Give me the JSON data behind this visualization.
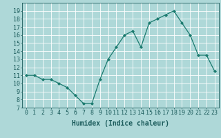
{
  "x": [
    0,
    1,
    2,
    3,
    4,
    5,
    6,
    7,
    8,
    9,
    10,
    11,
    12,
    13,
    14,
    15,
    16,
    17,
    18,
    19,
    20,
    21,
    22,
    23
  ],
  "y": [
    11,
    11,
    10.5,
    10.5,
    10,
    9.5,
    8.5,
    7.5,
    7.5,
    10.5,
    13,
    14.5,
    16,
    16.5,
    14.5,
    17.5,
    18,
    18.5,
    19,
    17.5,
    16,
    13.5,
    13.5,
    11.5
  ],
  "xlabel": "Humidex (Indice chaleur)",
  "ylim": [
    7,
    20
  ],
  "xlim": [
    -0.5,
    23.5
  ],
  "yticks": [
    7,
    8,
    9,
    10,
    11,
    12,
    13,
    14,
    15,
    16,
    17,
    18,
    19
  ],
  "xticks": [
    0,
    1,
    2,
    3,
    4,
    5,
    6,
    7,
    8,
    9,
    10,
    11,
    12,
    13,
    14,
    15,
    16,
    17,
    18,
    19,
    20,
    21,
    22,
    23
  ],
  "line_color": "#1a7a6e",
  "marker": "D",
  "marker_size": 2,
  "bg_color": "#aed8d8",
  "grid_color": "#ffffff",
  "tick_label_color": "#1a5a5a",
  "xlabel_fontsize": 7,
  "tick_fontsize": 6
}
